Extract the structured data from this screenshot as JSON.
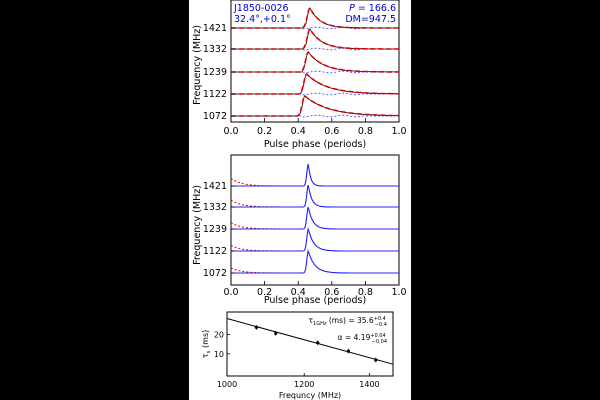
{
  "chart_data": [
    {
      "type": "line",
      "panel": "top",
      "title_left_line1": "J1850-0026",
      "title_left_line2": "32.4°,+0.1°",
      "title_right_line1": "P = 166.6",
      "title_right_line2": "DM=947.5",
      "xlabel": "Pulse phase (periods)",
      "ylabel": "Frequency (MHz)",
      "xlim": [
        0.0,
        1.0
      ],
      "x_ticks": [
        "0.0",
        "0.2",
        "0.4",
        "0.6",
        "0.8",
        "1.0"
      ],
      "y_ticks": [
        "1072",
        "1122",
        "1239",
        "1332",
        "1421"
      ],
      "series_colors": {
        "data": "#000000",
        "model": "#e00000",
        "residual": "#3a3aff"
      },
      "profiles": [
        {
          "freq": "1421",
          "peak_phase": 0.47,
          "decay": 0.06
        },
        {
          "freq": "1332",
          "peak_phase": 0.47,
          "decay": 0.07
        },
        {
          "freq": "1239",
          "peak_phase": 0.46,
          "decay": 0.09
        },
        {
          "freq": "1122",
          "peak_phase": 0.45,
          "decay": 0.12
        },
        {
          "freq": "1072",
          "peak_phase": 0.44,
          "decay": 0.14
        }
      ],
      "grid": false
    },
    {
      "type": "line",
      "panel": "middle",
      "xlabel": "Pulse phase (periods)",
      "ylabel": "Frequency (MHz)",
      "xlim": [
        0.0,
        1.0
      ],
      "x_ticks": [
        "0.0",
        "0.2",
        "0.4",
        "0.6",
        "0.8",
        "1.0"
      ],
      "y_ticks": [
        "1072",
        "1122",
        "1239",
        "1332",
        "1421"
      ],
      "series_colors": {
        "profile": "#2020ff",
        "model": "#e00000"
      },
      "profiles": [
        {
          "freq": "1421",
          "peak_phase": 0.46
        },
        {
          "freq": "1332",
          "peak_phase": 0.46
        },
        {
          "freq": "1239",
          "peak_phase": 0.46
        },
        {
          "freq": "1122",
          "peak_phase": 0.46
        },
        {
          "freq": "1072",
          "peak_phase": 0.46
        }
      ],
      "grid": false
    },
    {
      "type": "scatter",
      "panel": "bottom",
      "xlabel": "Frequncy (MHz)",
      "ylabel": "τs (ms)",
      "scale": "log-log",
      "xlim": [
        1000,
        1480
      ],
      "ylim": [
        4.5,
        45
      ],
      "x_ticks": [
        "1000",
        "1200",
        "1400"
      ],
      "x_tick_values": [
        1000,
        1200,
        1400
      ],
      "y_ticks": [
        "10",
        "20"
      ],
      "y_tick_values": [
        10,
        20
      ],
      "points": [
        {
          "x": 1072,
          "y": 25.9
        },
        {
          "x": 1122,
          "y": 20.9
        },
        {
          "x": 1239,
          "y": 14.9
        },
        {
          "x": 1332,
          "y": 11.0
        },
        {
          "x": 1421,
          "y": 8.0
        }
      ],
      "fit": {
        "tau_1ghz": 35.6,
        "alpha": 4.19
      },
      "annotation_tau": {
        "prefix": "τ",
        "sub": "1GHz",
        "mid": " (ms) = 35.6",
        "sup": "+0.4",
        "inf": "−0.4"
      },
      "annotation_alpha": {
        "prefix": "α = 4.19",
        "sup": "+0.04",
        "inf": "−0.04"
      },
      "grid": false
    }
  ]
}
